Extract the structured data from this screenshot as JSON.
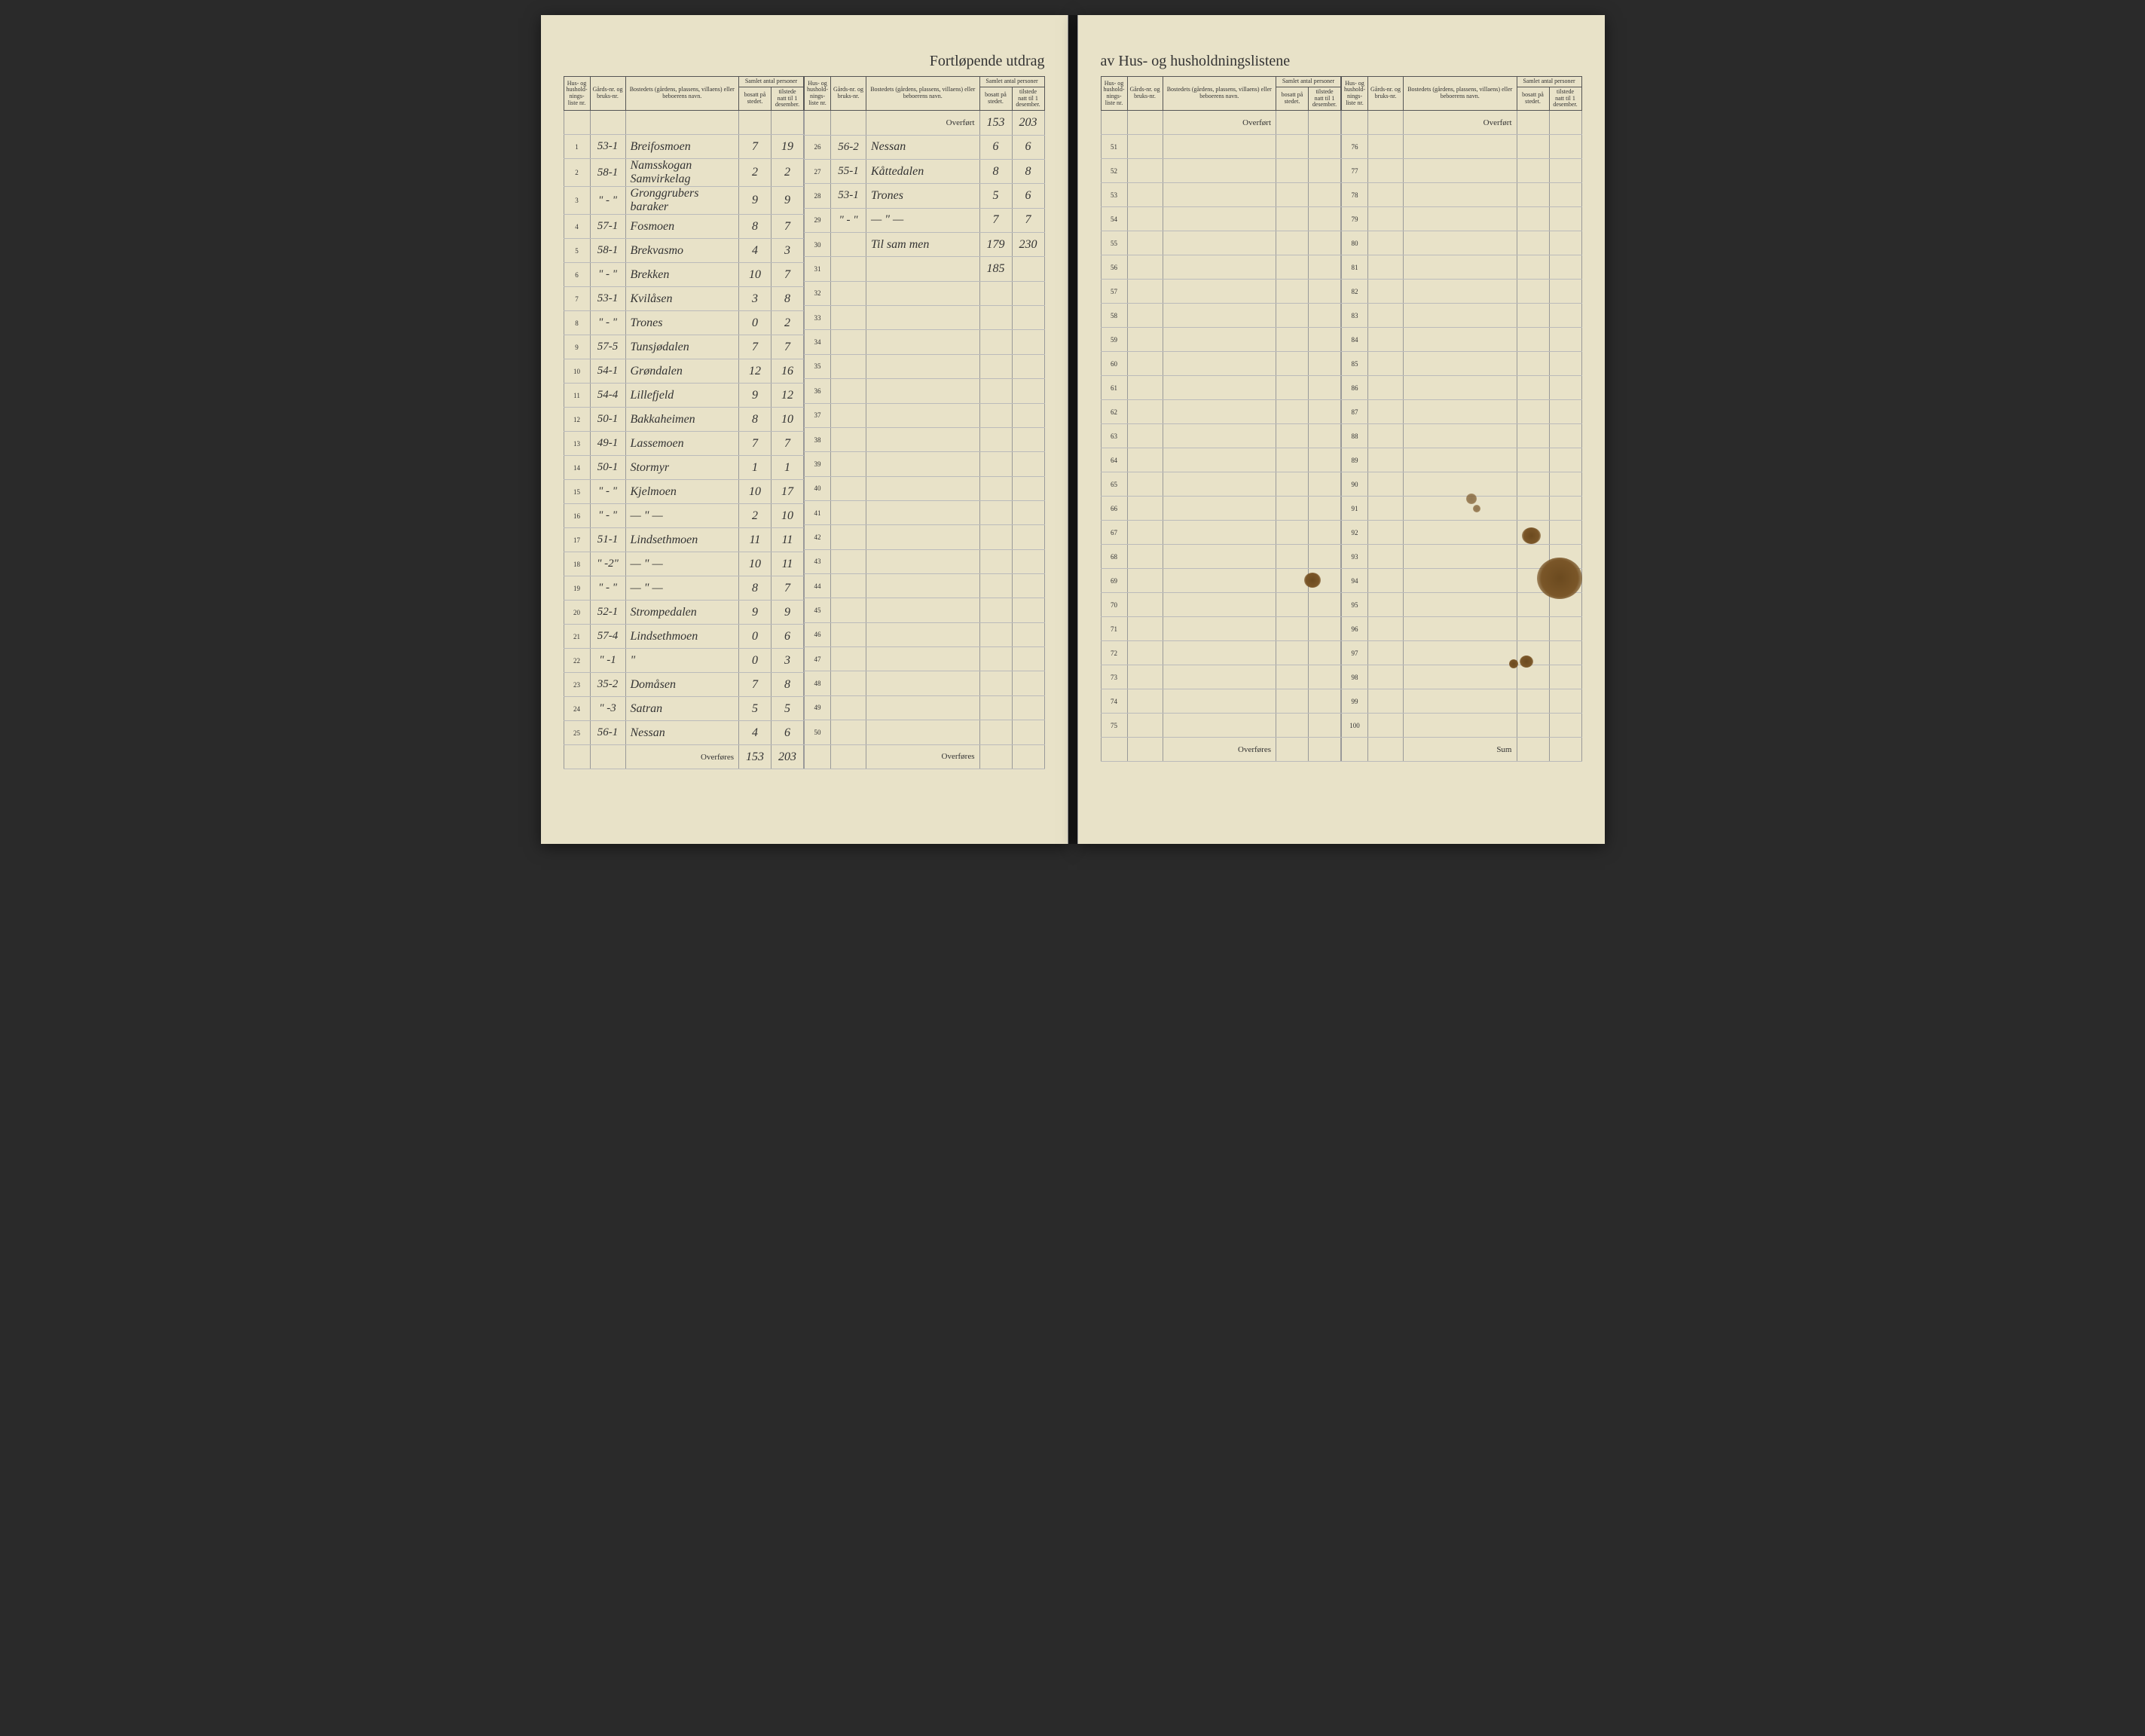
{
  "document": {
    "title_left": "Fortløpende utdrag",
    "title_right": "av Hus- og husholdningslistene",
    "headers": {
      "col1": "Hus- og hushold-nings-liste nr.",
      "col2": "Gårds-nr. og bruks-nr.",
      "col3": "Bostedets (gårdens, plassens, villaens) eller beboerens navn.",
      "col_group": "Samlet antal personer",
      "col4": "bosatt på stedet.",
      "col5": "tilstede natt til 1 desember."
    },
    "overfort_label": "Overført",
    "overfores_label": "Overføres",
    "sum_label": "Sum",
    "background_color": "#e8e2c8",
    "ink_color": "#3a3428",
    "border_color": "#555"
  },
  "leftA": {
    "rows": [
      {
        "n": "1",
        "g": "53-1",
        "name": "Breifosmoen",
        "b": "7",
        "t": "19"
      },
      {
        "n": "2",
        "g": "58-1",
        "name": "Namsskogan Samvirkelag",
        "b": "2",
        "t": "2"
      },
      {
        "n": "3",
        "g": "\" - \"",
        "name": "Gronggrubers baraker",
        "b": "9",
        "t": "9"
      },
      {
        "n": "4",
        "g": "57-1",
        "name": "Fosmoen",
        "b": "8",
        "t": "7"
      },
      {
        "n": "5",
        "g": "58-1",
        "name": "Brekvasmo",
        "b": "4",
        "t": "3"
      },
      {
        "n": "6",
        "g": "\" - \"",
        "name": "Brekken",
        "b": "10",
        "t": "7"
      },
      {
        "n": "7",
        "g": "53-1",
        "name": "Kvilåsen",
        "b": "3",
        "t": "8"
      },
      {
        "n": "8",
        "g": "\" - \"",
        "name": "Trones",
        "b": "0",
        "t": "2"
      },
      {
        "n": "9",
        "g": "57-5",
        "name": "Tunsjødalen",
        "b": "7",
        "t": "7"
      },
      {
        "n": "10",
        "g": "54-1",
        "name": "Grøndalen",
        "b": "12",
        "t": "16"
      },
      {
        "n": "11",
        "g": "54-4",
        "name": "Lillefjeld",
        "b": "9",
        "t": "12"
      },
      {
        "n": "12",
        "g": "50-1",
        "name": "Bakkaheimen",
        "b": "8",
        "t": "10"
      },
      {
        "n": "13",
        "g": "49-1",
        "name": "Lassemoen",
        "b": "7",
        "t": "7"
      },
      {
        "n": "14",
        "g": "50-1",
        "name": "Stormyr",
        "b": "1",
        "t": "1"
      },
      {
        "n": "15",
        "g": "\" - \"",
        "name": "Kjelmoen",
        "b": "10",
        "t": "17"
      },
      {
        "n": "16",
        "g": "\" - \"",
        "name": "— \" —",
        "b": "2",
        "t": "10"
      },
      {
        "n": "17",
        "g": "51-1",
        "name": "Lindsethmoen",
        "b": "11",
        "t": "11"
      },
      {
        "n": "18",
        "g": "\" -2\"",
        "name": "— \" —",
        "b": "10",
        "t": "11"
      },
      {
        "n": "19",
        "g": "\" - \"",
        "name": "— \" —",
        "b": "8",
        "t": "7"
      },
      {
        "n": "20",
        "g": "52-1",
        "name": "Strompedalen",
        "b": "9",
        "t": "9"
      },
      {
        "n": "21",
        "g": "57-4",
        "name": "Lindsethmoen",
        "b": "0",
        "t": "6"
      },
      {
        "n": "22",
        "g": "\" -1",
        "name": "\"",
        "b": "0",
        "t": "3"
      },
      {
        "n": "23",
        "g": "35-2",
        "name": "Domåsen",
        "b": "7",
        "t": "8"
      },
      {
        "n": "24",
        "g": "\" -3",
        "name": "Satran",
        "b": "5",
        "t": "5"
      },
      {
        "n": "25",
        "g": "56-1",
        "name": "Nessan",
        "b": "4",
        "t": "6"
      }
    ],
    "footer_b": "153",
    "footer_t": "203"
  },
  "leftB": {
    "overfort_b": "153",
    "overfort_t": "203",
    "rows": [
      {
        "n": "26",
        "g": "56-2",
        "name": "Nessan",
        "b": "6",
        "t": "6"
      },
      {
        "n": "27",
        "g": "55-1",
        "name": "Kåttedalen",
        "b": "8",
        "t": "8"
      },
      {
        "n": "28",
        "g": "53-1",
        "name": "Trones",
        "b": "5",
        "t": "6"
      },
      {
        "n": "29",
        "g": "\" - \"",
        "name": "— \" —",
        "b": "7",
        "t": "7"
      },
      {
        "n": "30",
        "g": "",
        "name": "Til sam men",
        "b": "179",
        "t": "230"
      },
      {
        "n": "31",
        "g": "",
        "name": "",
        "b": "185",
        "t": ""
      },
      {
        "n": "32",
        "g": "",
        "name": "",
        "b": "",
        "t": ""
      },
      {
        "n": "33",
        "g": "",
        "name": "",
        "b": "",
        "t": ""
      },
      {
        "n": "34",
        "g": "",
        "name": "",
        "b": "",
        "t": ""
      },
      {
        "n": "35",
        "g": "",
        "name": "",
        "b": "",
        "t": ""
      },
      {
        "n": "36",
        "g": "",
        "name": "",
        "b": "",
        "t": ""
      },
      {
        "n": "37",
        "g": "",
        "name": "",
        "b": "",
        "t": ""
      },
      {
        "n": "38",
        "g": "",
        "name": "",
        "b": "",
        "t": ""
      },
      {
        "n": "39",
        "g": "",
        "name": "",
        "b": "",
        "t": ""
      },
      {
        "n": "40",
        "g": "",
        "name": "",
        "b": "",
        "t": ""
      },
      {
        "n": "41",
        "g": "",
        "name": "",
        "b": "",
        "t": ""
      },
      {
        "n": "42",
        "g": "",
        "name": "",
        "b": "",
        "t": ""
      },
      {
        "n": "43",
        "g": "",
        "name": "",
        "b": "",
        "t": ""
      },
      {
        "n": "44",
        "g": "",
        "name": "",
        "b": "",
        "t": ""
      },
      {
        "n": "45",
        "g": "",
        "name": "",
        "b": "",
        "t": ""
      },
      {
        "n": "46",
        "g": "",
        "name": "",
        "b": "",
        "t": ""
      },
      {
        "n": "47",
        "g": "",
        "name": "",
        "b": "",
        "t": ""
      },
      {
        "n": "48",
        "g": "",
        "name": "",
        "b": "",
        "t": ""
      },
      {
        "n": "49",
        "g": "",
        "name": "",
        "b": "",
        "t": ""
      },
      {
        "n": "50",
        "g": "",
        "name": "",
        "b": "",
        "t": ""
      }
    ]
  },
  "rightA": {
    "rows_start": 51,
    "rows_end": 75
  },
  "rightB": {
    "rows_start": 76,
    "rows_end": 100
  }
}
